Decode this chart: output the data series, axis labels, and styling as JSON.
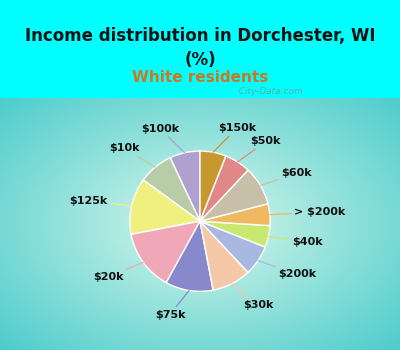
{
  "title": "Income distribution in Dorchester, WI\n(%)",
  "subtitle": "White residents",
  "bg_cyan": "#00FFFF",
  "labels": [
    "$100k",
    "$10k",
    "$125k",
    "$20k",
    "$75k",
    "$30k",
    "$200k",
    "$40k",
    "> $200k",
    "$60k",
    "$50k",
    "$150k"
  ],
  "values": [
    7,
    8,
    13,
    14,
    11,
    9,
    7,
    5,
    5,
    9,
    6,
    6
  ],
  "colors": [
    "#b0a0d0",
    "#b8cca8",
    "#f0f080",
    "#f0a8b8",
    "#8888cc",
    "#f5c8a8",
    "#a8b8e0",
    "#c8e870",
    "#f0b860",
    "#c8bfa8",
    "#e08888",
    "#c89830"
  ],
  "startangle": 90,
  "title_fontsize": 12,
  "subtitle_fontsize": 11,
  "label_fontsize": 8
}
